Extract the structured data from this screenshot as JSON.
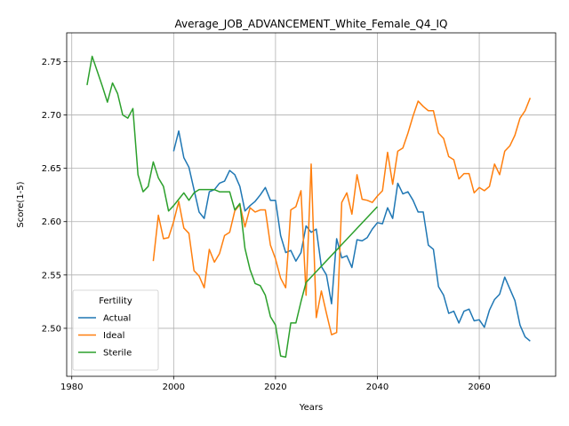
{
  "chart_data": {
    "type": "line",
    "title": "Average_JOB_ADVANCEMENT_White_Female_Q4_IQ",
    "xlabel": "Years",
    "ylabel": "Score(1-5)",
    "xlim": [
      1979,
      2075
    ],
    "ylim": [
      2.455,
      2.777
    ],
    "xticks": [
      1980,
      2000,
      2020,
      2040,
      2060
    ],
    "yticks": [
      2.5,
      2.55,
      2.6,
      2.65,
      2.7,
      2.75
    ],
    "ytick_labels": [
      "2.50",
      "2.55",
      "2.60",
      "2.65",
      "2.70",
      "2.75"
    ],
    "grid": true,
    "legend": {
      "title": "Fertility",
      "position": "lower-left"
    },
    "series": [
      {
        "name": "Actual",
        "color": "#1f77b4",
        "x": [
          2000,
          2001,
          2002,
          2003,
          2004,
          2005,
          2006,
          2007,
          2008,
          2009,
          2010,
          2011,
          2012,
          2013,
          2014,
          2015,
          2016,
          2017,
          2018,
          2019,
          2020,
          2021,
          2022,
          2023,
          2024,
          2025,
          2026,
          2027,
          2028,
          2029,
          2030,
          2031,
          2032,
          2033,
          2034,
          2035,
          2036,
          2037,
          2038,
          2039,
          2040,
          2041,
          2042,
          2043,
          2044,
          2045,
          2046,
          2047,
          2048,
          2049,
          2050,
          2051,
          2052,
          2053,
          2054,
          2055,
          2056,
          2057,
          2058,
          2059,
          2060,
          2061,
          2062,
          2063,
          2064,
          2065,
          2066,
          2067,
          2068,
          2069,
          2070
        ],
        "values": [
          2.666,
          2.685,
          2.66,
          2.651,
          2.63,
          2.609,
          2.603,
          2.628,
          2.63,
          2.636,
          2.638,
          2.648,
          2.644,
          2.633,
          2.61,
          2.615,
          2.619,
          2.625,
          2.632,
          2.62,
          2.62,
          2.587,
          2.571,
          2.573,
          2.563,
          2.571,
          2.596,
          2.59,
          2.593,
          2.558,
          2.55,
          2.523,
          2.584,
          2.566,
          2.568,
          2.557,
          2.583,
          2.582,
          2.585,
          2.593,
          2.599,
          2.598,
          2.613,
          2.603,
          2.636,
          2.626,
          2.628,
          2.62,
          2.609,
          2.609,
          2.578,
          2.574,
          2.539,
          2.531,
          2.514,
          2.516,
          2.505,
          2.516,
          2.518,
          2.507,
          2.508,
          2.501,
          2.517,
          2.527,
          2.532,
          2.548,
          2.537,
          2.526,
          2.503,
          2.492,
          2.488
        ]
      },
      {
        "name": "Ideal",
        "color": "#ff7f0e",
        "x": [
          1996,
          1997,
          1998,
          1999,
          2000,
          2001,
          2002,
          2003,
          2004,
          2005,
          2006,
          2007,
          2008,
          2009,
          2010,
          2011,
          2012,
          2013,
          2014,
          2015,
          2016,
          2017,
          2018,
          2019,
          2020,
          2021,
          2022,
          2023,
          2024,
          2025,
          2026,
          2027,
          2028,
          2029,
          2030,
          2031,
          2032,
          2033,
          2034,
          2035,
          2036,
          2037,
          2038,
          2039,
          2040,
          2041,
          2042,
          2043,
          2044,
          2045,
          2046,
          2047,
          2048,
          2049,
          2050,
          2051,
          2052,
          2053,
          2054,
          2055,
          2056,
          2057,
          2058,
          2059,
          2060,
          2061,
          2062,
          2063,
          2064,
          2065,
          2066,
          2067,
          2068,
          2069,
          2070
        ],
        "values": [
          2.563,
          2.606,
          2.584,
          2.585,
          2.6,
          2.619,
          2.594,
          2.589,
          2.554,
          2.549,
          2.538,
          2.574,
          2.562,
          2.57,
          2.587,
          2.59,
          2.61,
          2.616,
          2.595,
          2.613,
          2.609,
          2.611,
          2.611,
          2.578,
          2.565,
          2.547,
          2.538,
          2.611,
          2.614,
          2.629,
          2.531,
          2.654,
          2.51,
          2.535,
          2.514,
          2.494,
          2.496,
          2.618,
          2.627,
          2.607,
          2.644,
          2.621,
          2.62,
          2.618,
          2.624,
          2.629,
          2.665,
          2.635,
          2.666,
          2.669,
          2.683,
          2.699,
          2.713,
          2.708,
          2.704,
          2.704,
          2.683,
          2.678,
          2.661,
          2.658,
          2.64,
          2.645,
          2.645,
          2.627,
          2.632,
          2.629,
          2.633,
          2.654,
          2.644,
          2.666,
          2.671,
          2.681,
          2.697,
          2.704,
          2.716
        ]
      },
      {
        "name": "Sterile",
        "color": "#2ca02c",
        "x": [
          1983,
          1984,
          1985,
          1986,
          1987,
          1988,
          1989,
          1990,
          1991,
          1992,
          1993,
          1994,
          1995,
          1996,
          1997,
          1998,
          1999,
          2000,
          2001,
          2002,
          2003,
          2004,
          2005,
          2006,
          2007,
          2008,
          2009,
          2010,
          2011,
          2012,
          2013,
          2014,
          2015,
          2016,
          2017,
          2018,
          2019,
          2020,
          2021,
          2022,
          2023,
          2024,
          2025,
          2026,
          2040
        ],
        "values": [
          2.728,
          2.755,
          2.741,
          2.727,
          2.712,
          2.73,
          2.72,
          2.7,
          2.697,
          2.706,
          2.644,
          2.628,
          2.633,
          2.656,
          2.641,
          2.633,
          2.61,
          2.615,
          2.621,
          2.627,
          2.62,
          2.627,
          2.63,
          2.63,
          2.63,
          2.63,
          2.628,
          2.628,
          2.628,
          2.611,
          2.617,
          2.575,
          2.555,
          2.542,
          2.54,
          2.531,
          2.511,
          2.503,
          2.474,
          2.473,
          2.505,
          2.505,
          2.525,
          2.543,
          2.614
        ]
      }
    ]
  }
}
